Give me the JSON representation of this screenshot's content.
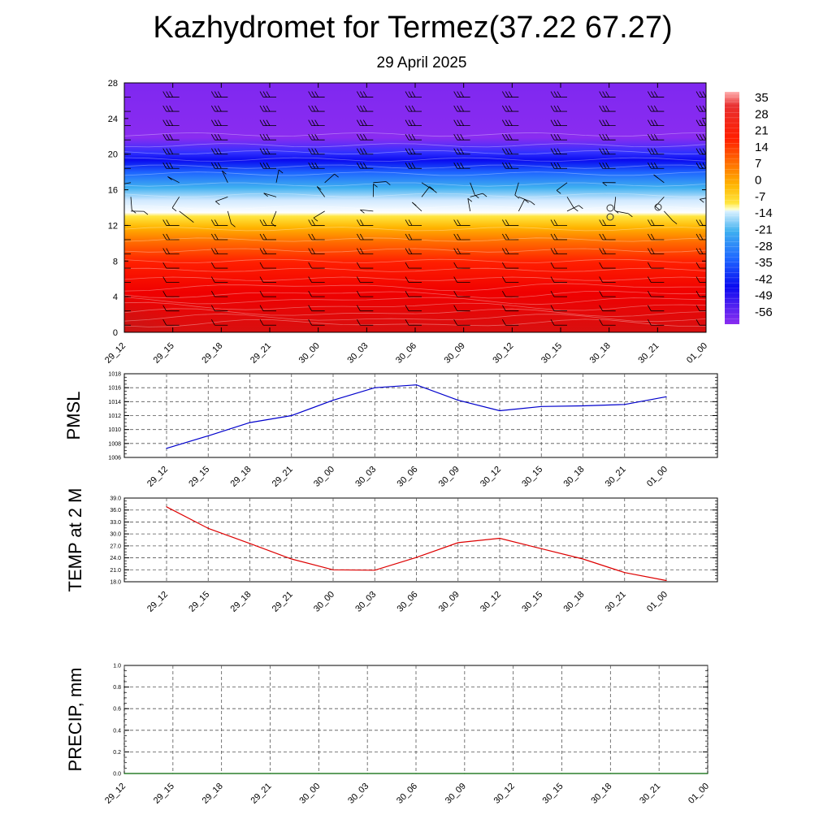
{
  "header": {
    "title": "Kazhydromet for Termez(37.22 67.27)",
    "date": "29 April 2025"
  },
  "colors": {
    "pmsl_line": "#0000cc",
    "temp_line": "#dd0000",
    "precip_line": "#006400",
    "barb": "#000000",
    "grid": "#555555"
  },
  "time_labels": [
    "29_12",
    "29_15",
    "29_18",
    "29_21",
    "30_00",
    "30_03",
    "30_06",
    "30_09",
    "30_12",
    "30_15",
    "30_18",
    "30_21",
    "01_00"
  ],
  "chart_data": [
    {
      "type": "heatmap",
      "name": "temperature cross-section",
      "y_ticks": [
        0,
        4,
        8,
        12,
        16,
        20,
        24,
        28
      ],
      "ylim": [
        0,
        28
      ],
      "x_ticks": [
        "29_12",
        "29_15",
        "29_18",
        "29_21",
        "30_00",
        "30_03",
        "30_06",
        "30_09",
        "30_12",
        "30_15",
        "30_18",
        "30_21",
        "01_00"
      ],
      "colorbar": {
        "labels": [
          "35",
          "28",
          "21",
          "14",
          "7",
          "0",
          "-7",
          "-14",
          "-21",
          "-28",
          "-35",
          "-42",
          "-49",
          "-56"
        ],
        "range": [
          -60,
          38
        ]
      },
      "wind_barbs": true
    },
    {
      "type": "line",
      "ylabel": "PMSL",
      "y_ticks": [
        "1018",
        "1016",
        "1014",
        "1012",
        "1010",
        "1008",
        "1006"
      ],
      "ylim": [
        1006,
        1018
      ],
      "categories": [
        "29_12",
        "29_15",
        "29_18",
        "29_21",
        "30_00",
        "30_03",
        "30_06",
        "30_09",
        "30_12",
        "30_15",
        "30_18",
        "30_21",
        "01_00"
      ],
      "values": [
        1007.3,
        1009.1,
        1011.0,
        1012.0,
        1014.2,
        1016.0,
        1016.4,
        1014.2,
        1012.7,
        1013.3,
        1013.4,
        1013.6,
        1014.7
      ],
      "grid": true
    },
    {
      "type": "line",
      "ylabel": "TEMP at 2 M",
      "y_ticks": [
        "39.0",
        "36.0",
        "33.0",
        "30.0",
        "27.0",
        "24.0",
        "21.0",
        "18.0"
      ],
      "ylim": [
        18,
        39
      ],
      "categories": [
        "29_12",
        "29_15",
        "29_18",
        "29_21",
        "30_00",
        "30_03",
        "30_06",
        "30_09",
        "30_12",
        "30_15",
        "30_18",
        "30_21",
        "01_00"
      ],
      "values": [
        36.8,
        31.4,
        27.6,
        23.7,
        21.0,
        20.9,
        24.1,
        27.8,
        28.9,
        26.3,
        23.7,
        20.3,
        18.3
      ],
      "grid": true
    },
    {
      "type": "line",
      "ylabel": "PRECIP, mm",
      "y_ticks": [
        "1.0",
        "0.8",
        "0.6",
        "0.4",
        "0.2",
        "0.0"
      ],
      "ylim": [
        0,
        1
      ],
      "categories": [
        "29_12",
        "29_15",
        "29_18",
        "29_21",
        "30_00",
        "30_03",
        "30_06",
        "30_09",
        "30_12",
        "30_15",
        "30_18",
        "30_21",
        "01_00"
      ],
      "values": [
        0,
        0,
        0,
        0,
        0,
        0,
        0,
        0,
        0,
        0,
        0,
        0,
        0
      ],
      "grid": true
    }
  ]
}
